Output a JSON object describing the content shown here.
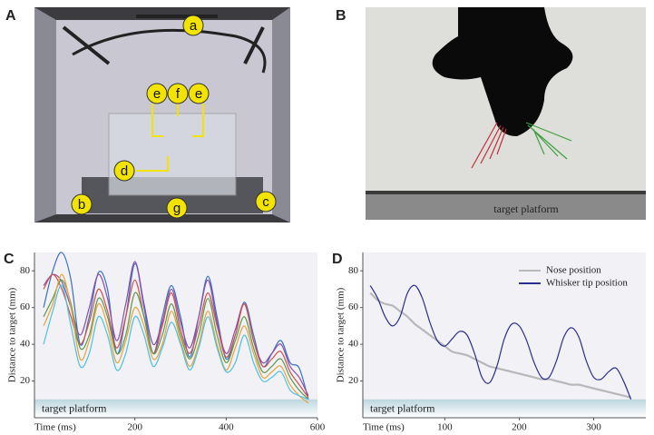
{
  "panel_labels": [
    "A",
    "B",
    "C",
    "D"
  ],
  "photo_a": {
    "labels": [
      "a",
      "e",
      "f",
      "e",
      "d",
      "b",
      "g",
      "c"
    ]
  },
  "photo_b": {
    "caption": "target platform"
  },
  "chart_data": [
    {
      "type": "line",
      "xlabel": "Time (ms)",
      "ylabel": "Distance to target (mm)",
      "target_label": "target platform",
      "target_band": [
        0,
        10
      ],
      "x": [
        0,
        20,
        40,
        60,
        80,
        100,
        120,
        140,
        160,
        180,
        200,
        220,
        240,
        260,
        280,
        300,
        320,
        340,
        360,
        380,
        400,
        420,
        440,
        460,
        480,
        500,
        520,
        540,
        560,
        580
      ],
      "series": [
        {
          "color": "#3a6fc4",
          "values": [
            60,
            80,
            90,
            75,
            40,
            55,
            79,
            70,
            35,
            55,
            84,
            60,
            35,
            55,
            72,
            55,
            33,
            55,
            77,
            55,
            32,
            45,
            63,
            45,
            28,
            35,
            42,
            30,
            27,
            10
          ]
        },
        {
          "color": "#8a4fa8",
          "values": [
            72,
            78,
            74,
            60,
            45,
            60,
            78,
            65,
            42,
            62,
            85,
            62,
            40,
            52,
            70,
            52,
            38,
            55,
            75,
            52,
            35,
            48,
            62,
            42,
            30,
            35,
            40,
            28,
            22,
            12
          ]
        },
        {
          "color": "#d2504a",
          "values": [
            70,
            78,
            70,
            55,
            40,
            52,
            70,
            58,
            38,
            55,
            75,
            55,
            35,
            50,
            68,
            48,
            35,
            50,
            68,
            50,
            33,
            45,
            62,
            42,
            28,
            32,
            36,
            25,
            18,
            11
          ]
        },
        {
          "color": "#5c9a4c",
          "values": [
            55,
            65,
            75,
            62,
            38,
            45,
            65,
            55,
            35,
            45,
            68,
            55,
            35,
            45,
            62,
            45,
            32,
            45,
            65,
            45,
            30,
            42,
            55,
            38,
            25,
            28,
            32,
            22,
            15,
            10
          ]
        },
        {
          "color": "#e8a33a",
          "values": [
            50,
            62,
            78,
            60,
            32,
            42,
            62,
            50,
            30,
            42,
            60,
            50,
            32,
            40,
            58,
            42,
            28,
            40,
            58,
            40,
            26,
            38,
            50,
            35,
            22,
            25,
            28,
            18,
            12,
            8
          ]
        },
        {
          "color": "#4fc0e0",
          "values": [
            40,
            58,
            72,
            50,
            28,
            35,
            55,
            45,
            26,
            35,
            55,
            45,
            28,
            38,
            52,
            40,
            26,
            38,
            55,
            38,
            25,
            30,
            45,
            30,
            20,
            22,
            25,
            15,
            12,
            10
          ]
        }
      ],
      "xlim": [
        -20,
        600
      ],
      "xticks": [
        200,
        400,
        600
      ],
      "ylim": [
        0,
        90
      ],
      "yticks": [
        20,
        40,
        60,
        80
      ]
    },
    {
      "type": "line",
      "xlabel": "Time (ms)",
      "ylabel": "Distance to target (mm)",
      "target_label": "target platform",
      "target_band": [
        0,
        10
      ],
      "legend": "top-right",
      "x": [
        0,
        10,
        20,
        30,
        40,
        50,
        60,
        70,
        80,
        90,
        100,
        110,
        120,
        130,
        140,
        150,
        160,
        170,
        180,
        190,
        200,
        210,
        220,
        230,
        240,
        250,
        260,
        270,
        280,
        290,
        300,
        310,
        320,
        330,
        340,
        350
      ],
      "series": [
        {
          "name": "Nose position",
          "color": "#b8b8b8",
          "values": [
            68,
            64,
            62,
            61,
            58,
            55,
            51,
            48,
            45,
            42,
            39,
            36,
            35,
            34,
            32,
            30,
            28,
            27,
            26,
            25,
            24,
            23,
            22,
            21,
            21,
            20,
            19,
            18,
            18,
            17,
            16,
            15,
            14,
            13,
            12,
            11
          ]
        },
        {
          "name": "Whisker tip position",
          "color": "#2a2f8a",
          "values": [
            72,
            65,
            55,
            50,
            55,
            68,
            72,
            65,
            52,
            42,
            39,
            43,
            47,
            45,
            35,
            22,
            19,
            28,
            43,
            51,
            50,
            42,
            30,
            22,
            22,
            31,
            44,
            49,
            44,
            31,
            22,
            21,
            25,
            27,
            20,
            10
          ]
        }
      ],
      "xlim": [
        -10,
        370
      ],
      "xticks": [
        100,
        200,
        300
      ],
      "ylim": [
        0,
        90
      ],
      "yticks": [
        20,
        40,
        60,
        80
      ]
    }
  ]
}
